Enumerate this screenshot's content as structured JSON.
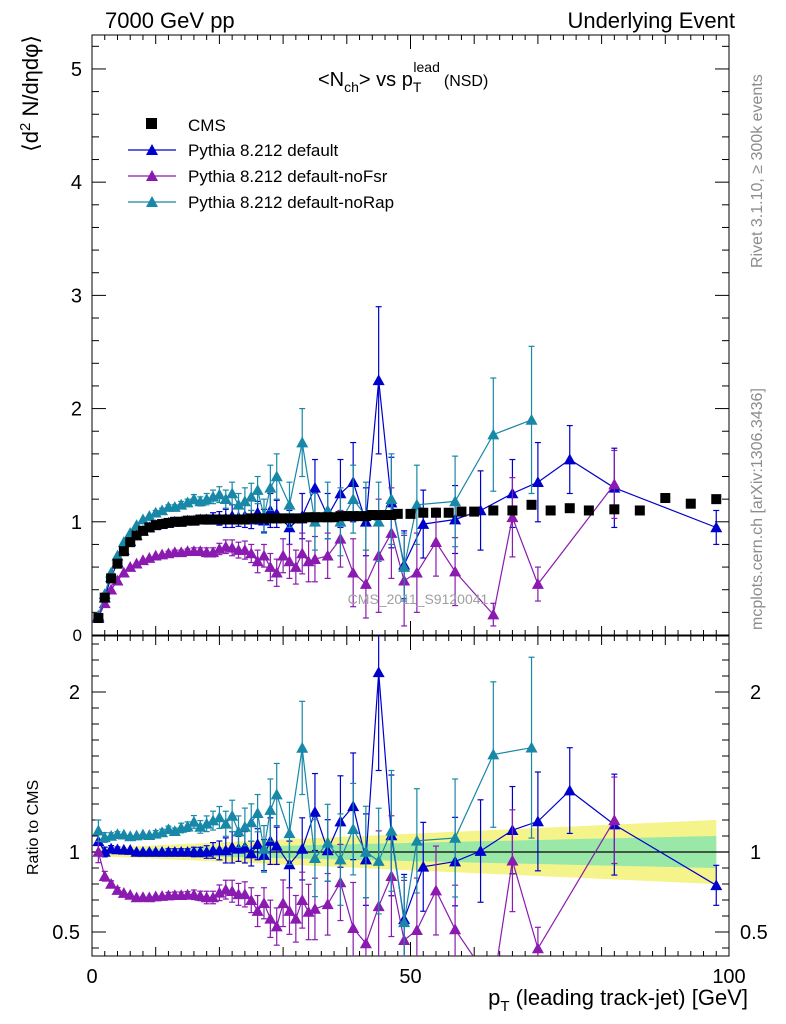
{
  "header": {
    "left": "7000 GeV pp",
    "right": "Underlying Event"
  },
  "plot_title": {
    "main": "<N",
    "sub1": "ch",
    "mid": "> vs p",
    "sub2": "T",
    "sup": "lead",
    "tail": "(NSD)"
  },
  "ylabel": {
    "open": "⟨d",
    "sup": "2",
    "rest": " N/dηdφ⟩"
  },
  "xlabel": {
    "p": "p",
    "sub": "T",
    "rest": " (leading track-jet) [GeV]"
  },
  "ratio_ylabel": "Ratio to CMS",
  "side_text": {
    "top": "Rivet 3.1.10, ≥ 300k events",
    "bottom": "mcplots.cern.ch [arXiv:1306.3436]"
  },
  "watermark": "CMS_2011_S9120041",
  "main_ticks": {
    "y": [
      "0",
      "1",
      "2",
      "3",
      "4",
      "5"
    ]
  },
  "ratio_ticks": {
    "y": [
      "0.5",
      "1",
      "2"
    ]
  },
  "x_ticks": [
    "0",
    "50",
    "100"
  ],
  "colors": {
    "cms": "#000000",
    "default": "#0000cc",
    "noFsr": "#8a1ab0",
    "noRap": "#1888a8",
    "band_outer": "#f4f48a",
    "band_inner": "#9ae8a8"
  },
  "chart_data": {
    "type": "scatter",
    "xlim": [
      0,
      100
    ],
    "ylim": [
      0,
      5.3
    ],
    "ratio_ylim": [
      0.35,
      2.35
    ],
    "xlabel": "p_T (leading track-jet) [GeV]",
    "ylabel": "⟨d² N/dηdφ⟩",
    "legend_position": "top-left",
    "grid": false,
    "legend": [
      "CMS",
      "Pythia 8.212 default",
      "Pythia 8.212 default-noFsr",
      "Pythia 8.212 default-noRap"
    ],
    "series": [
      {
        "name": "CMS",
        "marker": "square",
        "color": "#000000",
        "x": [
          1,
          2,
          3,
          4,
          5,
          6,
          7,
          8,
          9,
          10,
          11,
          12,
          13,
          14,
          15,
          16,
          17,
          18,
          19,
          20,
          21,
          22,
          23,
          24,
          25,
          26,
          27,
          28,
          29,
          30,
          31,
          32,
          33,
          34,
          35,
          36,
          37,
          38,
          39,
          40,
          41,
          42,
          43,
          44,
          45,
          46,
          47,
          48,
          50,
          52,
          54,
          56,
          58,
          60,
          63,
          66,
          69,
          72,
          75,
          78,
          82,
          86,
          90,
          94,
          98
        ],
        "y": [
          0.15,
          0.33,
          0.5,
          0.63,
          0.74,
          0.82,
          0.88,
          0.92,
          0.95,
          0.97,
          0.98,
          0.99,
          1.0,
          1.0,
          1.01,
          1.01,
          1.02,
          1.02,
          1.02,
          1.02,
          1.02,
          1.02,
          1.02,
          1.02,
          1.03,
          1.03,
          1.03,
          1.03,
          1.03,
          1.03,
          1.03,
          1.03,
          1.03,
          1.04,
          1.04,
          1.04,
          1.04,
          1.04,
          1.05,
          1.05,
          1.05,
          1.05,
          1.05,
          1.06,
          1.06,
          1.06,
          1.06,
          1.07,
          1.07,
          1.08,
          1.08,
          1.08,
          1.09,
          1.09,
          1.1,
          1.1,
          1.15,
          1.1,
          1.12,
          1.1,
          1.11,
          1.1,
          1.21,
          1.16,
          1.2
        ]
      },
      {
        "name": "Pythia 8.212 default",
        "marker": "triangle",
        "color": "#0000cc",
        "x": [
          1,
          2,
          3,
          4,
          5,
          6,
          7,
          8,
          9,
          10,
          11,
          12,
          13,
          14,
          15,
          16,
          17,
          18,
          19,
          20,
          21,
          22,
          23,
          24,
          25,
          26,
          27,
          28,
          29,
          31,
          33,
          35,
          37,
          39,
          41,
          43,
          45,
          47,
          49,
          52,
          57,
          61,
          66,
          70,
          75,
          82,
          98
        ],
        "y": [
          0.16,
          0.33,
          0.51,
          0.64,
          0.75,
          0.83,
          0.88,
          0.92,
          0.95,
          0.97,
          0.98,
          0.99,
          1.0,
          1.0,
          1.01,
          1.01,
          1.02,
          1.02,
          1.03,
          1.03,
          1.03,
          1.05,
          1.04,
          1.05,
          1.02,
          1.08,
          1.01,
          1.1,
          1.07,
          0.95,
          1.05,
          1.3,
          1.05,
          1.25,
          1.35,
          1.0,
          2.25,
          1.17,
          0.62,
          0.98,
          1.02,
          1.1,
          1.25,
          1.35,
          1.55,
          1.3,
          0.95
        ],
        "err": [
          0.01,
          0.01,
          0.01,
          0.01,
          0.01,
          0.01,
          0.01,
          0.01,
          0.01,
          0.01,
          0.01,
          0.02,
          0.02,
          0.02,
          0.02,
          0.03,
          0.03,
          0.04,
          0.05,
          0.06,
          0.08,
          0.1,
          0.08,
          0.1,
          0.08,
          0.1,
          0.1,
          0.15,
          0.12,
          0.15,
          0.2,
          0.25,
          0.2,
          0.3,
          0.35,
          0.3,
          0.65,
          0.4,
          0.3,
          0.3,
          0.3,
          0.35,
          0.3,
          0.35,
          0.3,
          0.35,
          0.15
        ]
      },
      {
        "name": "Pythia 8.212 default-noFsr",
        "marker": "triangle",
        "color": "#8a1ab0",
        "x": [
          1,
          2,
          3,
          4,
          5,
          6,
          7,
          8,
          9,
          10,
          11,
          12,
          13,
          14,
          15,
          16,
          17,
          18,
          19,
          20,
          21,
          22,
          23,
          24,
          25,
          26,
          27,
          28,
          29,
          30,
          31,
          32,
          33,
          34,
          35,
          37,
          39,
          41,
          43,
          45,
          47,
          49,
          51,
          54,
          57,
          63,
          66,
          70,
          82
        ],
        "y": [
          0.15,
          0.28,
          0.4,
          0.48,
          0.55,
          0.6,
          0.63,
          0.66,
          0.68,
          0.7,
          0.71,
          0.72,
          0.73,
          0.73,
          0.74,
          0.74,
          0.74,
          0.73,
          0.73,
          0.76,
          0.78,
          0.77,
          0.75,
          0.75,
          0.72,
          0.65,
          0.7,
          0.6,
          0.55,
          0.7,
          0.65,
          0.6,
          0.72,
          0.65,
          0.67,
          0.7,
          0.85,
          0.55,
          0.45,
          0.7,
          0.9,
          0.48,
          0.55,
          0.82,
          0.56,
          0.18,
          1.04,
          0.45,
          1.33
        ],
        "err": [
          0.01,
          0.01,
          0.01,
          0.01,
          0.01,
          0.01,
          0.01,
          0.01,
          0.01,
          0.01,
          0.01,
          0.02,
          0.02,
          0.02,
          0.02,
          0.03,
          0.03,
          0.04,
          0.04,
          0.05,
          0.06,
          0.07,
          0.07,
          0.08,
          0.08,
          0.1,
          0.1,
          0.12,
          0.12,
          0.15,
          0.15,
          0.15,
          0.18,
          0.18,
          0.2,
          0.2,
          0.25,
          0.3,
          0.3,
          0.5,
          0.4,
          0.4,
          0.35,
          0.3,
          0.3,
          0.1,
          0.35,
          0.15,
          0.3
        ]
      },
      {
        "name": "Pythia 8.212 default-noRap",
        "marker": "triangle",
        "color": "#1888a8",
        "x": [
          1,
          2,
          3,
          4,
          5,
          6,
          7,
          8,
          9,
          10,
          11,
          12,
          13,
          14,
          15,
          16,
          17,
          18,
          19,
          20,
          21,
          22,
          23,
          24,
          25,
          26,
          27,
          28,
          29,
          31,
          33,
          35,
          37,
          39,
          41,
          43,
          45,
          47,
          49,
          51,
          57,
          63,
          69
        ],
        "y": [
          0.17,
          0.36,
          0.55,
          0.7,
          0.82,
          0.9,
          0.97,
          1.02,
          1.05,
          1.08,
          1.1,
          1.13,
          1.13,
          1.15,
          1.17,
          1.2,
          1.18,
          1.2,
          1.22,
          1.24,
          1.2,
          1.25,
          1.15,
          1.18,
          1.22,
          1.28,
          1.05,
          1.3,
          1.4,
          1.15,
          1.7,
          1.0,
          1.1,
          1.0,
          1.2,
          1.05,
          1.0,
          1.2,
          0.6,
          1.15,
          1.18,
          1.77,
          1.9
        ],
        "err": [
          0.01,
          0.01,
          0.01,
          0.01,
          0.01,
          0.01,
          0.01,
          0.01,
          0.01,
          0.02,
          0.02,
          0.02,
          0.02,
          0.03,
          0.03,
          0.04,
          0.04,
          0.05,
          0.06,
          0.07,
          0.08,
          0.1,
          0.1,
          0.12,
          0.12,
          0.12,
          0.15,
          0.2,
          0.2,
          0.2,
          0.3,
          0.25,
          0.25,
          0.3,
          0.3,
          0.3,
          0.35,
          0.4,
          0.3,
          0.35,
          0.4,
          0.5,
          0.65
        ]
      }
    ]
  }
}
